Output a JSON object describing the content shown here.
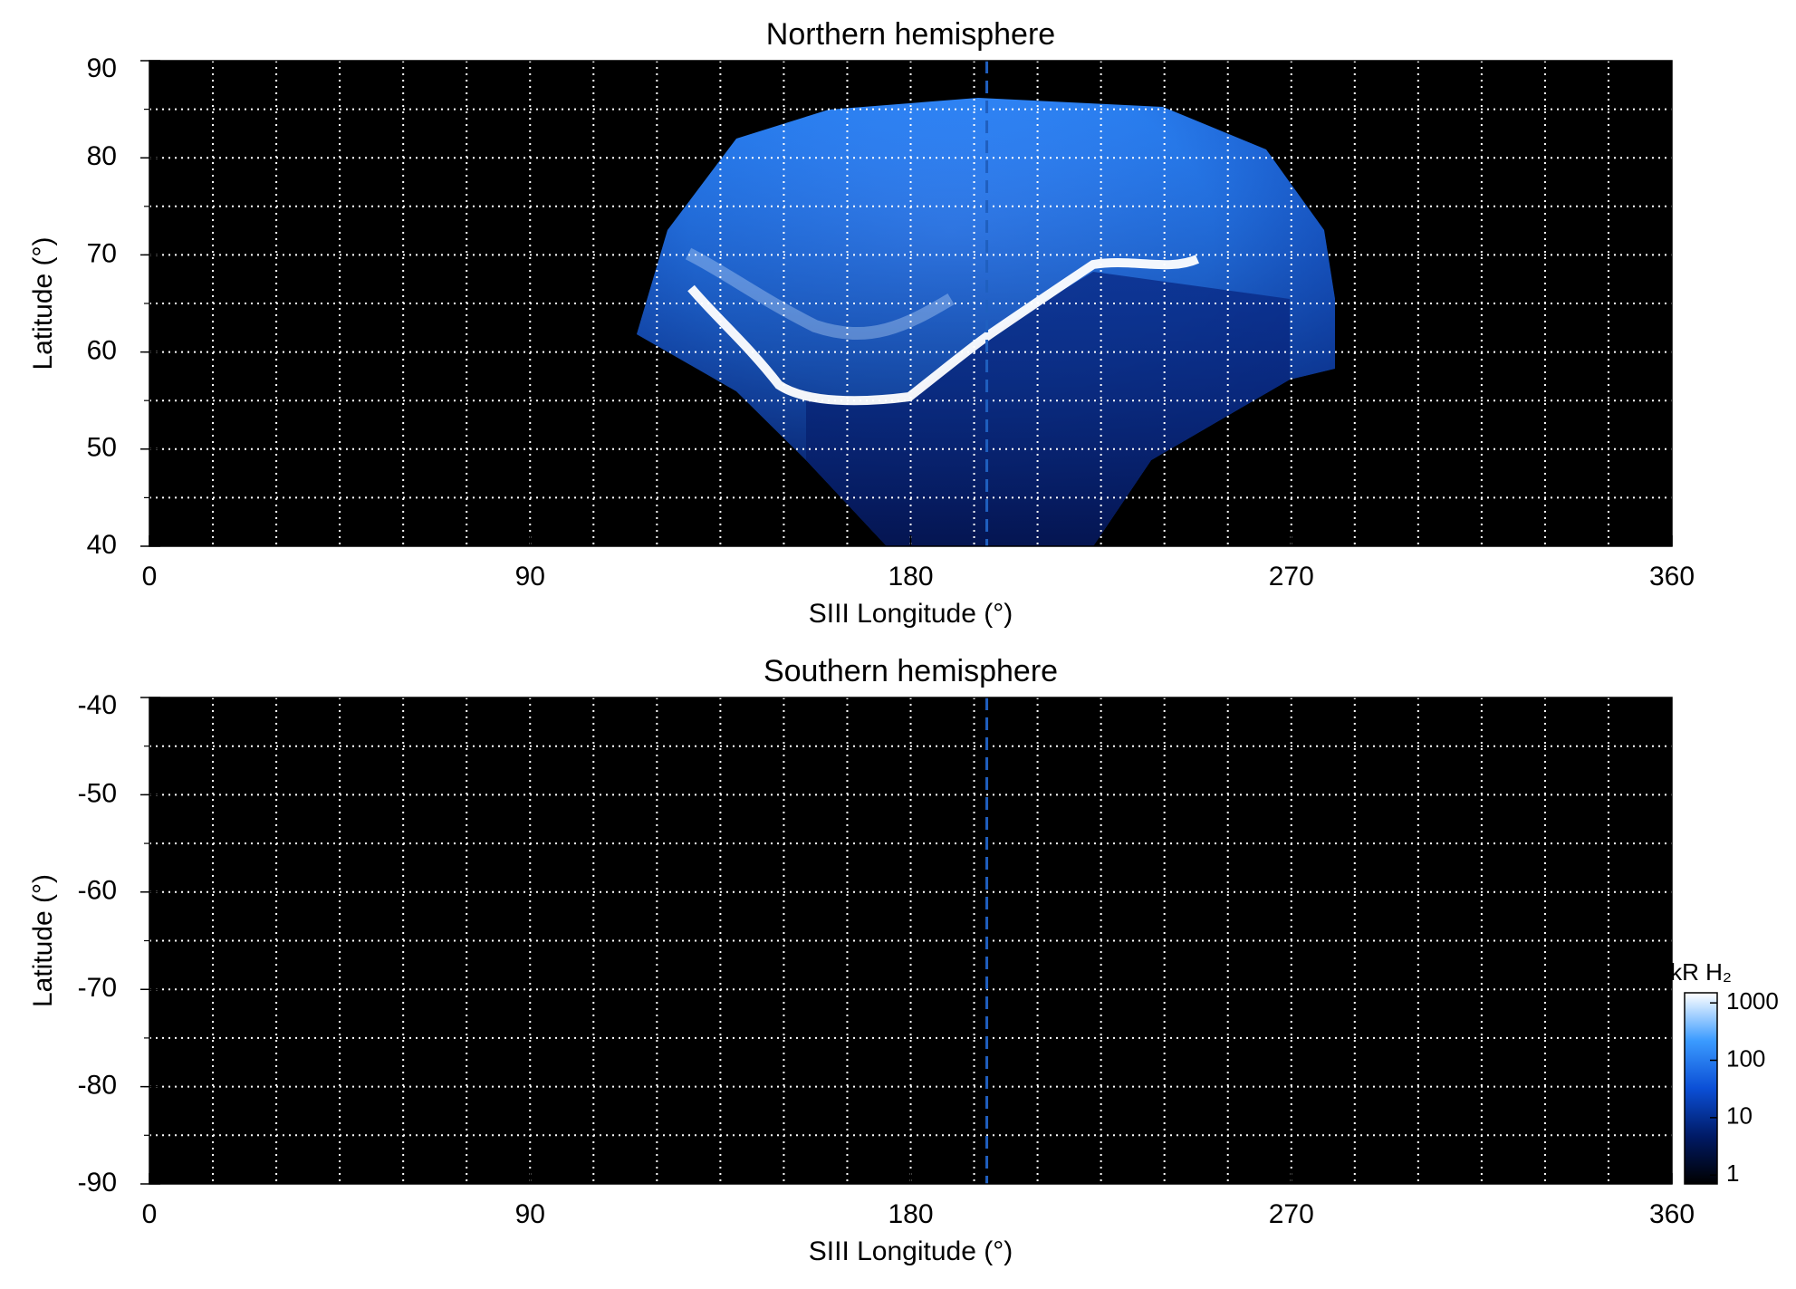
{
  "chart_data": [
    {
      "type": "heatmap",
      "title": "Northern hemisphere",
      "x_label": "SIII Longitude (°)",
      "y_label": "Latitude (°)",
      "xlim": [
        0,
        360
      ],
      "xticks": [
        0,
        90,
        180,
        270,
        360
      ],
      "ylim": [
        40,
        90
      ],
      "yticks": [
        40,
        50,
        60,
        70,
        80,
        90
      ],
      "xgrid": [
        15,
        30,
        45,
        60,
        75,
        90,
        105,
        120,
        135,
        150,
        165,
        180,
        195,
        210,
        225,
        240,
        255,
        270,
        285,
        300,
        315,
        330,
        345
      ],
      "ygrid": [
        45,
        50,
        55,
        60,
        65,
        70,
        75,
        80,
        85
      ],
      "marker_longitude": 198,
      "marker_color": "#1f5fbf",
      "background": "#000000"
    },
    {
      "type": "heatmap",
      "title": "Southern hemisphere",
      "x_label": "SIII Longitude (°)",
      "y_label": "Latitude (°)",
      "xlim": [
        0,
        360
      ],
      "xticks": [
        0,
        90,
        180,
        270,
        360
      ],
      "ylim": [
        -90,
        -40
      ],
      "yticks": [
        -90,
        -80,
        -70,
        -60,
        -50,
        -40
      ],
      "xgrid": [
        15,
        30,
        45,
        60,
        75,
        90,
        105,
        120,
        135,
        150,
        165,
        180,
        195,
        210,
        225,
        240,
        255,
        270,
        285,
        300,
        315,
        330,
        345
      ],
      "ygrid": [
        -85,
        -80,
        -75,
        -70,
        -65,
        -60,
        -55,
        -50,
        -45
      ],
      "marker_longitude": 198,
      "marker_color": "#1f5fbf",
      "background": "#000000",
      "colorbar": {
        "label": "kR H₂",
        "log": true,
        "lim": [
          0.7,
          1500
        ],
        "ticks": [
          1,
          10,
          100,
          1000
        ],
        "colors": [
          "#000000",
          "#001a66",
          "#0b4fd6",
          "#3b9bff",
          "#ffffff"
        ]
      }
    }
  ]
}
